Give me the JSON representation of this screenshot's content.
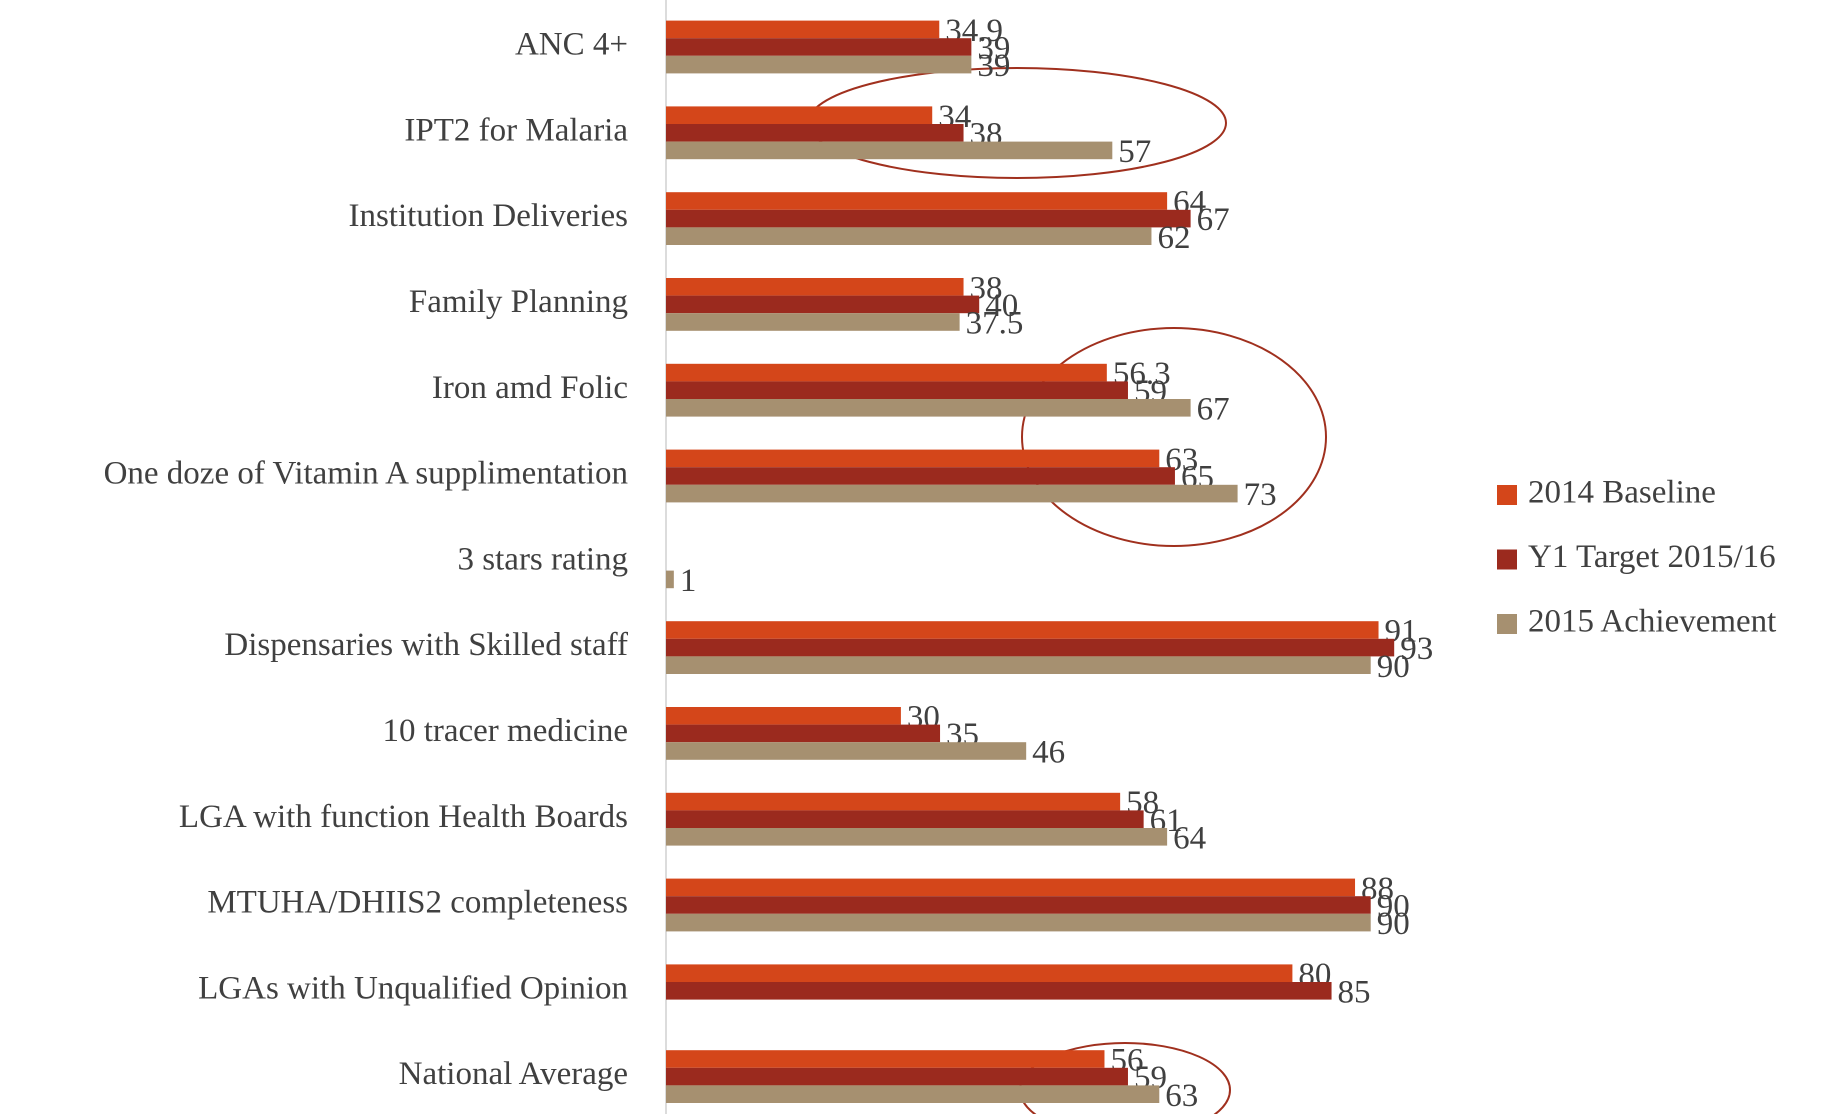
{
  "chart_data": {
    "type": "hbar",
    "categories": [
      "ANC 4+",
      "IPT2 for Malaria",
      "Institution Deliveries",
      "Family Planning",
      "Iron amd Folic",
      "One doze of Vitamin A supplimentation",
      "3 stars rating",
      "Dispensaries with Skilled staff",
      "10 tracer medicine",
      "LGA with function Health Boards",
      "MTUHA/DHIIS2 completeness",
      "LGAs with Unqualified Opinion",
      "National Average"
    ],
    "series": [
      {
        "name": "2014 Baseline",
        "color": "#d4461a",
        "values": [
          34.9,
          34,
          64,
          38,
          56.3,
          63,
          null,
          91,
          30,
          58,
          88,
          80,
          56
        ]
      },
      {
        "name": "Y1 Target 2015/16",
        "color": "#9b2a1e",
        "values": [
          39,
          38,
          67,
          40,
          59,
          65,
          null,
          93,
          35,
          61,
          90,
          85,
          59
        ]
      },
      {
        "name": "2015 Achievement",
        "color": "#a69070",
        "values": [
          39,
          57,
          62,
          37.5,
          67,
          73,
          1,
          90,
          46,
          64,
          90,
          null,
          63
        ]
      }
    ],
    "xlim": [
      0,
      100
    ],
    "legend": "right"
  }
}
